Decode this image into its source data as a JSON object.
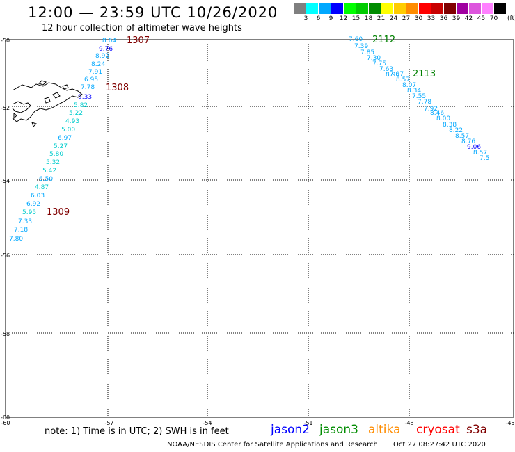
{
  "header": {
    "title": "12:00 — 23:59 UTC 10/26/2020",
    "subtitle": "12 hour collection of altimeter wave heights"
  },
  "legend": {
    "unit": "(ft)",
    "levels": [
      {
        "label": "3",
        "color": "#7f7f7f"
      },
      {
        "label": "6",
        "color": "#00ffff"
      },
      {
        "label": "9",
        "color": "#00a8ff"
      },
      {
        "label": "12",
        "color": "#0000ff"
      },
      {
        "label": "15",
        "color": "#00ff00"
      },
      {
        "label": "18",
        "color": "#00cc00"
      },
      {
        "label": "21",
        "color": "#008c00"
      },
      {
        "label": "24",
        "color": "#ffff00"
      },
      {
        "label": "27",
        "color": "#ffcc00"
      },
      {
        "label": "30",
        "color": "#ff8c00"
      },
      {
        "label": "33",
        "color": "#ff0000"
      },
      {
        "label": "36",
        "color": "#c80000"
      },
      {
        "label": "39",
        "color": "#800000"
      },
      {
        "label": "42",
        "color": "#a000a0"
      },
      {
        "label": "45",
        "color": "#dd55dd"
      },
      {
        "label": "70",
        "color": "#ff80ff"
      },
      {
        "label": "",
        "color": "#000000"
      }
    ]
  },
  "axes": {
    "lat_labels": [
      "-50",
      "-52",
      "-54",
      "-56",
      "-58",
      "-60"
    ],
    "lon_labels": [
      "-60",
      "-57",
      "-54",
      "-51",
      "-48",
      "-45"
    ]
  },
  "tracks": [
    {
      "id": "1307",
      "color": "#800000"
    },
    {
      "id": "1308",
      "color": "#800000"
    },
    {
      "id": "1309",
      "color": "#800000"
    },
    {
      "id": "2112",
      "color": "#008000"
    },
    {
      "id": "2113",
      "color": "#008000"
    }
  ],
  "readings": [
    {
      "v": "8.64",
      "c": "#00a8ff"
    },
    {
      "v": "9.76",
      "c": "#0000ff"
    },
    {
      "v": "8.92",
      "c": "#00a8ff"
    },
    {
      "v": "8.24",
      "c": "#00a8ff"
    },
    {
      "v": "7.91",
      "c": "#00a8ff"
    },
    {
      "v": "6.95",
      "c": "#00a8ff"
    },
    {
      "v": "7.78",
      "c": "#00a8ff"
    },
    {
      "v": "9.33",
      "c": "#0000ff"
    },
    {
      "v": "5.82",
      "c": "#00cccc"
    },
    {
      "v": "5.22",
      "c": "#00cccc"
    },
    {
      "v": "4.93",
      "c": "#00cccc"
    },
    {
      "v": "5.00",
      "c": "#00cccc"
    },
    {
      "v": "6.97",
      "c": "#00a8ff"
    },
    {
      "v": "5.27",
      "c": "#00cccc"
    },
    {
      "v": "5.80",
      "c": "#00cccc"
    },
    {
      "v": "5.32",
      "c": "#00cccc"
    },
    {
      "v": "5.42",
      "c": "#00cccc"
    },
    {
      "v": "6.50",
      "c": "#00a8ff"
    },
    {
      "v": "4.87",
      "c": "#00cccc"
    },
    {
      "v": "6.03",
      "c": "#00a8ff"
    },
    {
      "v": "6.92",
      "c": "#00a8ff"
    },
    {
      "v": "5.95",
      "c": "#00cccc"
    },
    {
      "v": "7.33",
      "c": "#00a8ff"
    },
    {
      "v": "7.18",
      "c": "#00a8ff"
    },
    {
      "v": "7.80",
      "c": "#00a8ff"
    },
    {
      "v": "7.60",
      "c": "#00a8ff"
    },
    {
      "v": "7.39",
      "c": "#00a8ff"
    },
    {
      "v": "7.85",
      "c": "#00a8ff"
    },
    {
      "v": "7.30",
      "c": "#00a8ff"
    },
    {
      "v": "7.75",
      "c": "#00a8ff"
    },
    {
      "v": "7.63",
      "c": "#00a8ff"
    },
    {
      "v": "8.96",
      "c": "#00a8ff"
    },
    {
      "v": "7.97",
      "c": "#00a8ff"
    },
    {
      "v": "8.57",
      "c": "#00a8ff"
    },
    {
      "v": "8.07",
      "c": "#00a8ff"
    },
    {
      "v": "8.34",
      "c": "#00a8ff"
    },
    {
      "v": "7.55",
      "c": "#00a8ff"
    },
    {
      "v": "7.78",
      "c": "#00a8ff"
    },
    {
      "v": "7.92",
      "c": "#00a8ff"
    },
    {
      "v": "8.46",
      "c": "#00a8ff"
    },
    {
      "v": "8.00",
      "c": "#00a8ff"
    },
    {
      "v": "8.38",
      "c": "#00a8ff"
    },
    {
      "v": "8.22",
      "c": "#00a8ff"
    },
    {
      "v": "8.57",
      "c": "#00a8ff"
    },
    {
      "v": "8.76",
      "c": "#00a8ff"
    },
    {
      "v": "9.06",
      "c": "#0000ff"
    },
    {
      "v": "8.57",
      "c": "#00a8ff"
    },
    {
      "v": "7.5",
      "c": "#00a8ff"
    }
  ],
  "footer": {
    "note": "note: 1) Time is in UTC; 2) SWH is in feet",
    "satellites": [
      {
        "name": "jason2",
        "color": "#0000ff"
      },
      {
        "name": "jason3",
        "color": "#008c00"
      },
      {
        "name": "altika",
        "color": "#ff8c00"
      },
      {
        "name": "cryosat",
        "color": "#ff0000"
      },
      {
        "name": "s3a",
        "color": "#800000"
      }
    ],
    "credit": "NOAA/NESDIS Center for Satellite Applications and Research",
    "timestamp": "Oct 27 08:27:42 UTC 2020"
  }
}
